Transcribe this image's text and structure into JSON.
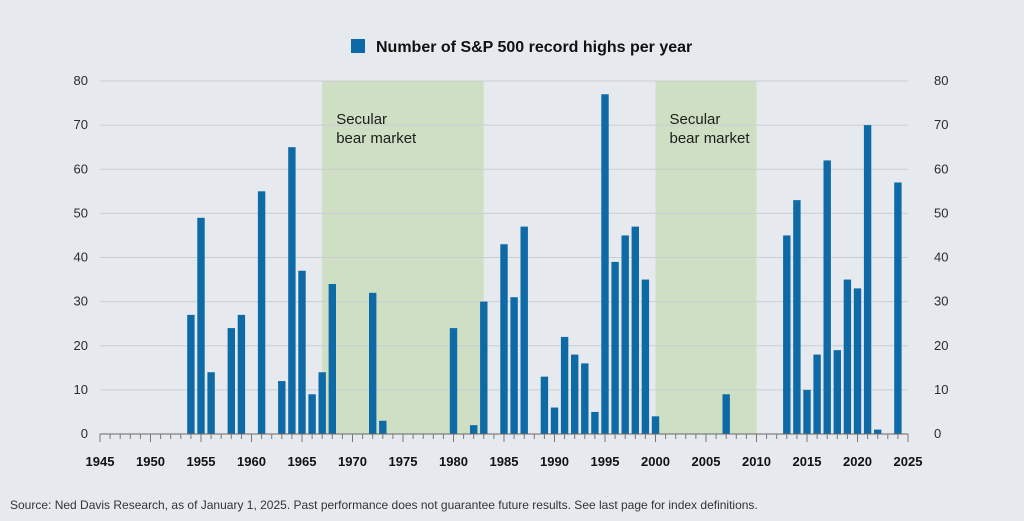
{
  "chart_data": {
    "type": "bar",
    "legend": {
      "label": "Number of S&P 500 record highs per year",
      "color": "#0d6aa6",
      "placement": "top-center"
    },
    "xlim": [
      1945,
      2025
    ],
    "ylim": [
      0,
      80
    ],
    "x_ticks": [
      1945,
      1950,
      1955,
      1960,
      1965,
      1970,
      1975,
      1980,
      1985,
      1990,
      1995,
      2000,
      2005,
      2010,
      2015,
      2020,
      2025
    ],
    "y_ticks": [
      0,
      10,
      20,
      30,
      40,
      50,
      60,
      70,
      80
    ],
    "grid": true,
    "shaded_regions": [
      {
        "start": 1967,
        "end": 1983,
        "label_line1": "Secular",
        "label_line2": "bear market",
        "color": "#cfdfc3"
      },
      {
        "start": 2000,
        "end": 2010,
        "label_line1": "Secular",
        "label_line2": "bear market",
        "color": "#cfdfc3"
      }
    ],
    "series": [
      {
        "x": [
          1954,
          1955,
          1956,
          1958,
          1959,
          1961,
          1963,
          1964,
          1965,
          1966,
          1967,
          1968,
          1972,
          1973,
          1980,
          1982,
          1983,
          1985,
          1986,
          1987,
          1989,
          1990,
          1991,
          1992,
          1993,
          1994,
          1995,
          1996,
          1997,
          1998,
          1999,
          2000,
          2007,
          2013,
          2014,
          2015,
          2016,
          2017,
          2018,
          2019,
          2020,
          2021,
          2022,
          2024
        ],
        "values": [
          27,
          49,
          14,
          24,
          27,
          55,
          12,
          65,
          37,
          9,
          14,
          34,
          32,
          3,
          24,
          2,
          30,
          43,
          31,
          47,
          13,
          6,
          22,
          18,
          16,
          5,
          77,
          39,
          45,
          47,
          35,
          4,
          9,
          45,
          53,
          10,
          18,
          62,
          19,
          35,
          33,
          70,
          1,
          57
        ]
      }
    ]
  },
  "source": "Source: Ned Davis Research, as of January 1, 2025. Past performance does not guarantee future results. See last page for index definitions."
}
